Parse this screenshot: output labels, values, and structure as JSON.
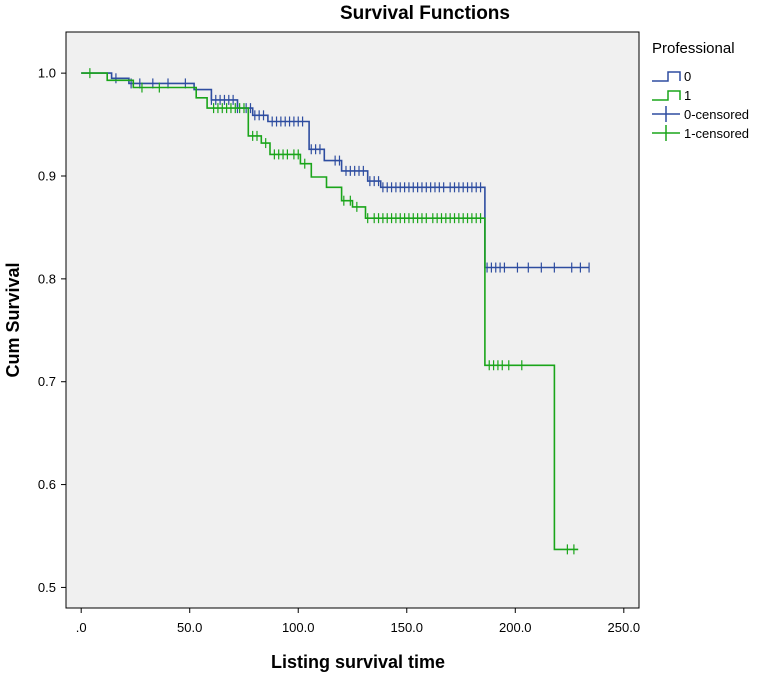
{
  "chart_data": {
    "type": "line",
    "subtype": "kaplan-meier-step",
    "title": "Survival Functions",
    "xlabel": "Listing survival time",
    "ylabel": "Cum Survival",
    "xlim": [
      -7,
      257
    ],
    "ylim": [
      0.48,
      1.04
    ],
    "x_ticks": [
      0,
      50,
      100,
      150,
      200,
      250
    ],
    "x_tick_labels": [
      ".0",
      "50.0",
      "100.0",
      "150.0",
      "200.0",
      "250.0"
    ],
    "y_ticks": [
      0.5,
      0.6,
      0.7,
      0.8,
      0.9,
      1.0
    ],
    "y_tick_labels": [
      "0.5",
      "0.6",
      "0.7",
      "0.8",
      "0.9",
      "1.0"
    ],
    "grid": false,
    "plot_background": "#f0f0f0",
    "legend": {
      "title": "Professional",
      "position": "right",
      "entries": [
        {
          "label": "0",
          "kind": "line",
          "color": "#2e4da0"
        },
        {
          "label": "1",
          "kind": "line",
          "color": "#1aa51a"
        },
        {
          "label": "0-censored",
          "kind": "censor",
          "color": "#2e4da0"
        },
        {
          "label": "1-censored",
          "kind": "censor",
          "color": "#1aa51a"
        }
      ]
    },
    "series": [
      {
        "name": "0",
        "color": "#2e4da0",
        "steps": [
          {
            "x": 0,
            "y": 1.0
          },
          {
            "x": 14,
            "y": 0.995
          },
          {
            "x": 22,
            "y": 0.99
          },
          {
            "x": 52,
            "y": 0.984
          },
          {
            "x": 60,
            "y": 0.974
          },
          {
            "x": 72,
            "y": 0.966
          },
          {
            "x": 79,
            "y": 0.959
          },
          {
            "x": 86,
            "y": 0.953
          },
          {
            "x": 105,
            "y": 0.926
          },
          {
            "x": 112,
            "y": 0.915
          },
          {
            "x": 120,
            "y": 0.905
          },
          {
            "x": 132,
            "y": 0.895
          },
          {
            "x": 138,
            "y": 0.889
          },
          {
            "x": 186,
            "y": 0.811
          }
        ],
        "end_x": 234,
        "censored": [
          16,
          23,
          27,
          33,
          40,
          48,
          60,
          62,
          64,
          66,
          68,
          70,
          72,
          76,
          78,
          80,
          82,
          84,
          88,
          90,
          92,
          94,
          96,
          98,
          100,
          102,
          106,
          108,
          110,
          117,
          119,
          122,
          124,
          126,
          128,
          130,
          133,
          135,
          137,
          139,
          141,
          143,
          145,
          147,
          149,
          151,
          153,
          155,
          157,
          159,
          161,
          163,
          165,
          167,
          170,
          172,
          174,
          176,
          178,
          180,
          182,
          184,
          187,
          189,
          191,
          193,
          195,
          201,
          206,
          212,
          218,
          226,
          230,
          234
        ]
      },
      {
        "name": "1",
        "color": "#1aa51a",
        "steps": [
          {
            "x": 0,
            "y": 1.0
          },
          {
            "x": 12,
            "y": 0.993
          },
          {
            "x": 24,
            "y": 0.986
          },
          {
            "x": 53,
            "y": 0.976
          },
          {
            "x": 58,
            "y": 0.966
          },
          {
            "x": 77,
            "y": 0.939
          },
          {
            "x": 83,
            "y": 0.932
          },
          {
            "x": 87,
            "y": 0.921
          },
          {
            "x": 101,
            "y": 0.912
          },
          {
            "x": 106,
            "y": 0.899
          },
          {
            "x": 113,
            "y": 0.889
          },
          {
            "x": 120,
            "y": 0.876
          },
          {
            "x": 125,
            "y": 0.87
          },
          {
            "x": 131,
            "y": 0.859
          },
          {
            "x": 186,
            "y": 0.716
          },
          {
            "x": 218,
            "y": 0.537
          }
        ],
        "end_x": 229,
        "censored": [
          4,
          28,
          36,
          61,
          63,
          65,
          67,
          69,
          71,
          73,
          75,
          79,
          81,
          85,
          89,
          91,
          93,
          95,
          98,
          100,
          103,
          121,
          124,
          127,
          132,
          135,
          137,
          139,
          141,
          143,
          145,
          147,
          149,
          151,
          153,
          155,
          157,
          159,
          162,
          164,
          166,
          168,
          170,
          172,
          174,
          176,
          178,
          180,
          182,
          184,
          188,
          190,
          192,
          194,
          197,
          203,
          224,
          227
        ]
      }
    ]
  }
}
